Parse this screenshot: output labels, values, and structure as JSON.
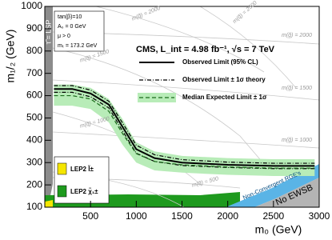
{
  "chart_data": {
    "type": "line",
    "x_label": "m₀ (GeV)",
    "y_label": "m₁/₂ (GeV)",
    "xlim": [
      0,
      3000
    ],
    "ylim": [
      100,
      1000
    ],
    "xticks": [
      500,
      1000,
      1500,
      2000,
      2500,
      3000
    ],
    "yticks": [
      100,
      200,
      300,
      400,
      500,
      600,
      700,
      800,
      900,
      1000
    ],
    "grid": false,
    "header": "CMS, L_int = 4.98 fb⁻¹, √s = 7 TeV",
    "x": [
      100,
      300,
      500,
      700,
      850,
      1000,
      1200,
      1500,
      2000,
      2500,
      2950
    ],
    "series": [
      {
        "name": "Observed Limit (95% CL)",
        "color": "#000000",
        "style": "solid",
        "values": [
          630,
          630,
          610,
          560,
          460,
          360,
          320,
          300,
          290,
          285,
          285
        ]
      },
      {
        "name": "Observed Limit ± 1σ theory",
        "color": "#000000",
        "style": "dashdot",
        "values": [
          645,
          645,
          625,
          575,
          478,
          378,
          335,
          313,
          302,
          297,
          297
        ]
      },
      {
        "color": "#000000",
        "style": "dashdot",
        "values": [
          615,
          615,
          595,
          545,
          442,
          342,
          305,
          287,
          278,
          273,
          273
        ]
      },
      {
        "name": "Median Expected Limit ± 1σ",
        "color": "#1a6b1a",
        "style": "dashed",
        "values": [
          600,
          600,
          585,
          530,
          430,
          340,
          305,
          290,
          280,
          275,
          275
        ]
      }
    ],
    "band": {
      "color": "#b8ecb8",
      "upper": [
        650,
        650,
        635,
        585,
        495,
        390,
        350,
        330,
        320,
        315,
        315
      ],
      "lower": [
        555,
        555,
        540,
        480,
        380,
        300,
        265,
        255,
        245,
        240,
        240
      ]
    },
    "parameters": [
      "tan(β)=10",
      "A₀ = 0 GeV",
      "μ > 0",
      "mₜ = 173.2 GeV"
    ],
    "regions": [
      "τ̃ = LSP",
      "Non-Convergent RGE's",
      "No EWSB"
    ],
    "lep2": [
      "LEP2 l̃±",
      "LEP2 χ̃₁±"
    ],
    "annotations": [
      "m(q̃) = 2000",
      "m(q̃) = 2500",
      "m(g̃) = 2000",
      "m(q̃) = 1500",
      "m(g̃) = 1500",
      "m(q̃) = 1000",
      "m(g̃) = 1000",
      "m(q̃) = 500"
    ]
  }
}
